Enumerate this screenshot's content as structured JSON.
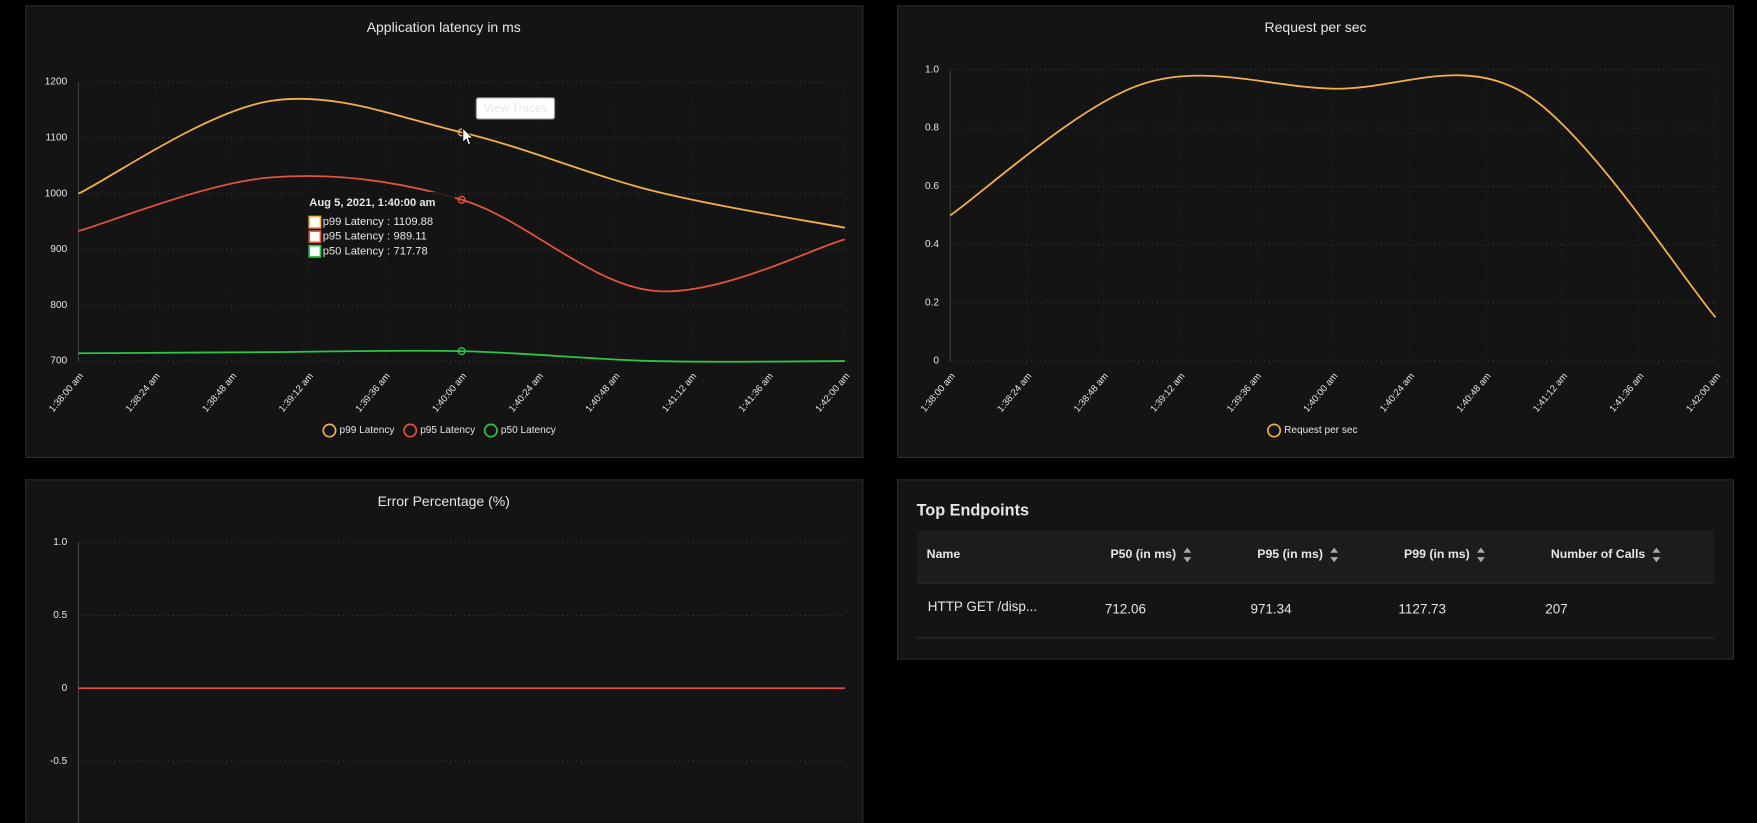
{
  "chart_data": [
    {
      "type": "line",
      "title": "Application latency in ms",
      "x": [
        0,
        60,
        120,
        180,
        240
      ],
      "xlim": [
        0,
        240
      ],
      "xticks": [
        {
          "value": 0,
          "label": "1:38:00 am"
        },
        {
          "value": 24,
          "label": "1:38:24 am"
        },
        {
          "value": 48,
          "label": "1:38:48 am"
        },
        {
          "value": 72,
          "label": "1:39:12 am"
        },
        {
          "value": 96,
          "label": "1:39:36 am"
        },
        {
          "value": 120,
          "label": "1:40:00 am"
        },
        {
          "value": 144,
          "label": "1:40:24 am"
        },
        {
          "value": 168,
          "label": "1:40:48 am"
        },
        {
          "value": 192,
          "label": "1:41:12 am"
        },
        {
          "value": 216,
          "label": "1:41:36 am"
        },
        {
          "value": 240,
          "label": "1:42:00 am"
        }
      ],
      "ylim": [
        700,
        1200
      ],
      "yticks": [
        700,
        800,
        900,
        1000,
        1100,
        1200
      ],
      "grid": true,
      "series": [
        {
          "name": "p99 Latency",
          "color": "#f2b04c",
          "values": [
            1000,
            1166,
            1109.88,
            1005,
            939
          ]
        },
        {
          "name": "p95 Latency",
          "color": "#e0533f",
          "values": [
            933,
            1029,
            989.11,
            826,
            918
          ]
        },
        {
          "name": "p50 Latency",
          "color": "#2ec44a",
          "values": [
            714,
            716,
            717.78,
            700,
            700
          ]
        }
      ],
      "tooltip": {
        "title": "Aug 5, 2021, 1:40:00 am",
        "separator": ":"
      },
      "button": "View Traces"
    },
    {
      "type": "line",
      "title": "Request per sec",
      "x": [
        0,
        60,
        120,
        180,
        240
      ],
      "xlim": [
        0,
        240
      ],
      "xticks": [
        {
          "value": 0,
          "label": "1:38:00 am"
        },
        {
          "value": 24,
          "label": "1:38:24 am"
        },
        {
          "value": 48,
          "label": "1:38:48 am"
        },
        {
          "value": 72,
          "label": "1:39:12 am"
        },
        {
          "value": 96,
          "label": "1:39:36 am"
        },
        {
          "value": 120,
          "label": "1:40:00 am"
        },
        {
          "value": 144,
          "label": "1:40:24 am"
        },
        {
          "value": 168,
          "label": "1:40:48 am"
        },
        {
          "value": 192,
          "label": "1:41:12 am"
        },
        {
          "value": 216,
          "label": "1:41:36 am"
        },
        {
          "value": 240,
          "label": "1:42:00 am"
        }
      ],
      "ylim": [
        0,
        1
      ],
      "yticks": [
        0,
        0.2,
        0.4,
        0.6,
        0.8,
        {
          "value": 1,
          "label": "1.0"
        }
      ],
      "grid": true,
      "series": [
        {
          "name": "Request per sec",
          "color": "#f2b04c",
          "values": [
            0.5,
            0.95,
            0.935,
            0.92,
            0.15
          ]
        }
      ]
    },
    {
      "type": "line",
      "title": "Error Percentage (%)",
      "x": [
        0,
        60,
        120,
        180,
        240
      ],
      "xlim": [
        0,
        240
      ],
      "ylim": [
        -1,
        1
      ],
      "yticks": [
        -0.5,
        0,
        0.5,
        {
          "value": 1,
          "label": "1.0"
        }
      ],
      "grid": true,
      "series": [
        {
          "color": "#e0533f",
          "values": [
            0,
            0,
            0,
            0,
            0
          ]
        }
      ]
    }
  ],
  "table": {
    "title": "Top Endpoints",
    "headers": [
      "Name",
      "P50 (in ms)",
      "P95 (in ms)",
      "P99 (in ms)",
      "Number of Calls"
    ],
    "rows": [
      [
        "HTTP GET /disp...",
        712.06,
        971.34,
        1127.73,
        207
      ]
    ]
  }
}
